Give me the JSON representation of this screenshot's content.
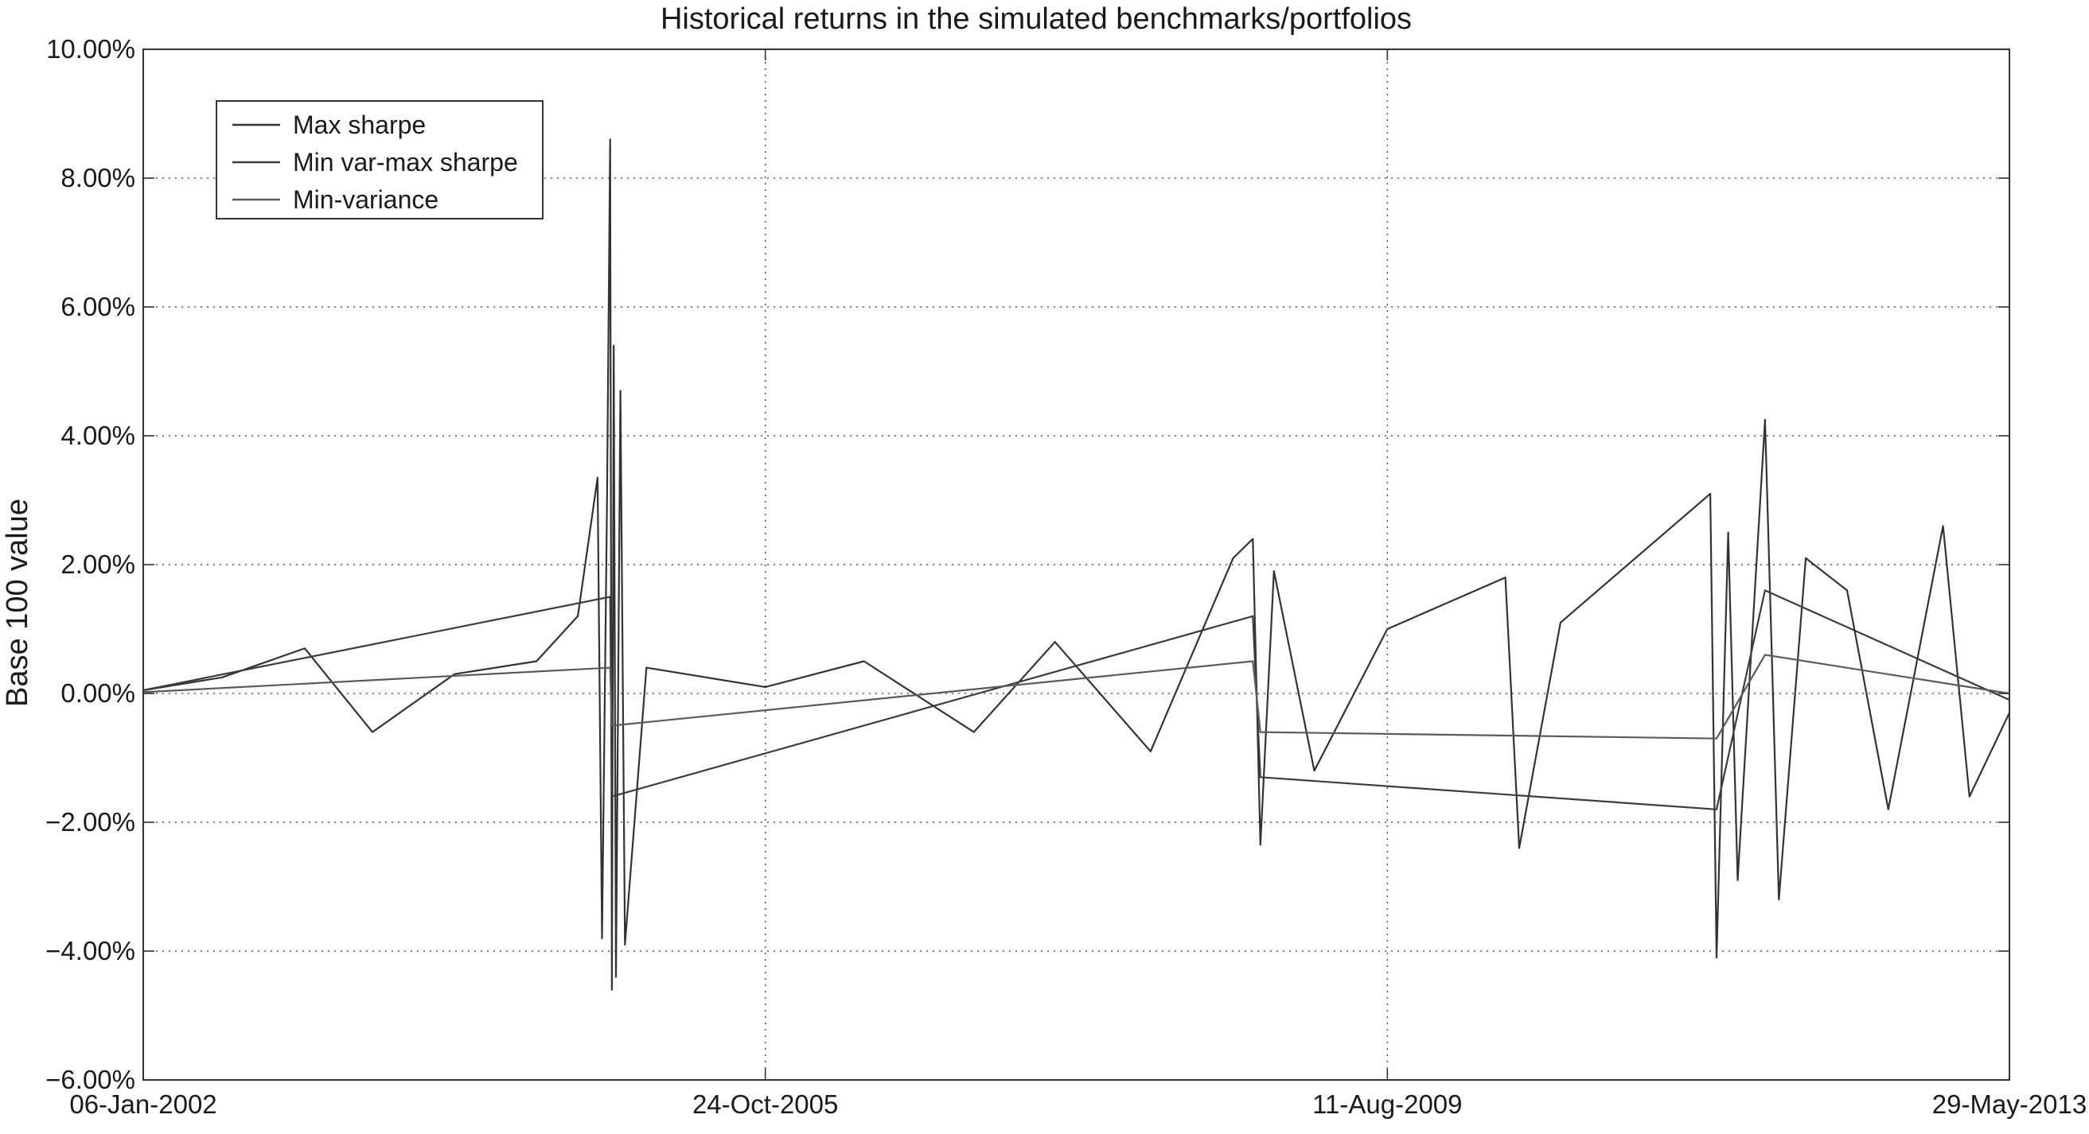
{
  "chart_data": {
    "type": "line",
    "title": "Historical returns in the simulated benchmarks/portfolios",
    "xlabel": "",
    "ylabel": "Base 100 value",
    "x_range": [
      "2002-01-06",
      "2013-05-29"
    ],
    "x_ticks": [
      {
        "date": "2002-01-06",
        "label": "06-Jan-2002"
      },
      {
        "date": "2005-10-24",
        "label": "24-Oct-2005"
      },
      {
        "date": "2009-08-11",
        "label": "11-Aug-2009"
      },
      {
        "date": "2013-05-29",
        "label": "29-May-2013"
      }
    ],
    "ylim": [
      -6.0,
      10.0
    ],
    "y_ticks": [
      {
        "value": 10,
        "label": "10.00%"
      },
      {
        "value": 8,
        "label": "8.00%"
      },
      {
        "value": 6,
        "label": "6.00%"
      },
      {
        "value": 4,
        "label": "4.00%"
      },
      {
        "value": 2,
        "label": "2.00%"
      },
      {
        "value": 0,
        "label": "0.00%"
      },
      {
        "value": -2,
        "label": "−2.00%"
      },
      {
        "value": -4,
        "label": "−4.00%"
      },
      {
        "value": -6,
        "label": "−6.00%"
      }
    ],
    "grid": true,
    "grid_style": "dotted",
    "legend_position": "top-left",
    "series": [
      {
        "name": "Max sharpe",
        "color": "#333333",
        "points": [
          [
            "2002-01-06",
            0.05
          ],
          [
            "2002-07-01",
            0.25
          ],
          [
            "2003-01-01",
            0.7
          ],
          [
            "2003-06-01",
            -0.6
          ],
          [
            "2003-12-01",
            0.3
          ],
          [
            "2004-06-01",
            0.5
          ],
          [
            "2004-09-01",
            1.2
          ],
          [
            "2004-10-15",
            3.35
          ],
          [
            "2004-10-25",
            -3.8
          ],
          [
            "2004-11-05",
            2.9
          ],
          [
            "2004-11-12",
            8.6
          ],
          [
            "2004-11-16",
            -4.6
          ],
          [
            "2004-11-20",
            5.4
          ],
          [
            "2004-11-25",
            -4.4
          ],
          [
            "2004-12-05",
            4.7
          ],
          [
            "2004-12-15",
            -3.9
          ],
          [
            "2005-02-01",
            0.4
          ],
          [
            "2005-10-24",
            0.1
          ],
          [
            "2006-06-01",
            0.5
          ],
          [
            "2007-02-01",
            -0.6
          ],
          [
            "2007-08-01",
            0.8
          ],
          [
            "2008-03-01",
            -0.9
          ],
          [
            "2008-09-01",
            2.1
          ],
          [
            "2008-10-15",
            2.4
          ],
          [
            "2008-11-01",
            -2.35
          ],
          [
            "2008-12-01",
            1.9
          ],
          [
            "2009-03-01",
            -1.2
          ],
          [
            "2009-08-11",
            1.0
          ],
          [
            "2010-05-01",
            1.8
          ],
          [
            "2010-06-01",
            -2.4
          ],
          [
            "2010-09-01",
            1.1
          ],
          [
            "2011-08-01",
            3.1
          ],
          [
            "2011-08-15",
            -4.1
          ],
          [
            "2011-09-10",
            2.5
          ],
          [
            "2011-10-01",
            -2.9
          ],
          [
            "2011-12-01",
            4.25
          ],
          [
            "2012-01-01",
            -3.2
          ],
          [
            "2012-03-01",
            2.1
          ],
          [
            "2012-06-01",
            1.6
          ],
          [
            "2012-09-01",
            -1.8
          ],
          [
            "2013-01-01",
            2.6
          ],
          [
            "2013-03-01",
            -1.6
          ],
          [
            "2013-05-29",
            -0.3
          ]
        ]
      },
      {
        "name": "Min var-max sharpe",
        "color": "#3c3c3c",
        "points": [
          [
            "2002-01-06",
            0.05
          ],
          [
            "2004-11-12",
            1.5
          ],
          [
            "2004-11-16",
            -1.6
          ],
          [
            "2008-10-15",
            1.2
          ],
          [
            "2008-11-01",
            -1.3
          ],
          [
            "2011-08-15",
            -1.8
          ],
          [
            "2011-12-01",
            1.6
          ],
          [
            "2013-05-29",
            -0.1
          ]
        ]
      },
      {
        "name": "Min-variance",
        "color": "#5a5a5a",
        "points": [
          [
            "2002-01-06",
            0.02
          ],
          [
            "2004-11-12",
            0.4
          ],
          [
            "2004-11-16",
            -0.5
          ],
          [
            "2008-10-15",
            0.5
          ],
          [
            "2008-11-01",
            -0.6
          ],
          [
            "2011-08-15",
            -0.7
          ],
          [
            "2011-12-01",
            0.6
          ],
          [
            "2013-05-29",
            0.0
          ]
        ]
      }
    ]
  }
}
